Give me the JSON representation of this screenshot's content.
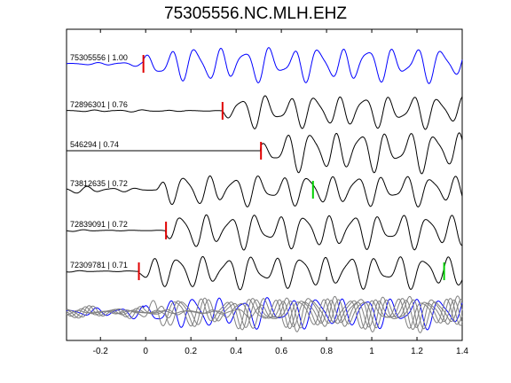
{
  "title": "75305556.NC.MLH.EHZ",
  "colors": {
    "reference": "#0000ff",
    "trace": "#000000",
    "stack": "#808080",
    "pick_p": "#e00000",
    "pick_s": "#00d000"
  },
  "chart_data": {
    "type": "line",
    "title": "75305556.NC.MLH.EHZ",
    "xlabel": "",
    "ylabel": "",
    "xlim": [
      -0.35,
      1.4
    ],
    "xticks": [
      -0.2,
      0,
      0.2,
      0.4,
      0.6,
      0.8,
      1,
      1.2,
      1.4
    ],
    "xtick_labels": [
      "-0.2",
      "0",
      "0.2",
      "0.4",
      "0.6",
      "0.8",
      "1",
      "1.2",
      "1.4"
    ],
    "grid": false,
    "traces": [
      {
        "label": "75305556 | 1.00",
        "color": "blue",
        "onset": -0.01,
        "picks": [
          {
            "t": -0.01,
            "type": "P"
          }
        ],
        "pre_amp": 0.12,
        "post_amp": 0.85
      },
      {
        "label": "72896301 | 0.76",
        "color": "black",
        "onset": 0.34,
        "picks": [
          {
            "t": 0.34,
            "type": "P"
          }
        ],
        "pre_amp": 0.05,
        "post_amp": 0.8
      },
      {
        "label": "546294 | 0.74",
        "color": "black",
        "onset": 0.51,
        "picks": [
          {
            "t": 0.51,
            "type": "P"
          }
        ],
        "pre_amp": 0.0,
        "post_amp": 1.0
      },
      {
        "label": "73812635 | 0.72",
        "color": "black",
        "onset": 0.05,
        "picks": [
          {
            "t": 0.74,
            "type": "S"
          }
        ],
        "pre_amp": 0.18,
        "post_amp": 0.75
      },
      {
        "label": "72839091 | 0.72",
        "color": "black",
        "onset": 0.09,
        "picks": [
          {
            "t": 0.09,
            "type": "P"
          }
        ],
        "pre_amp": 0.06,
        "post_amp": 0.85
      },
      {
        "label": "72309781 | 0.71",
        "color": "black",
        "onset": -0.03,
        "picks": [
          {
            "t": -0.03,
            "type": "P"
          },
          {
            "t": 1.32,
            "type": "S"
          }
        ],
        "pre_amp": 0.08,
        "post_amp": 0.8
      }
    ]
  }
}
